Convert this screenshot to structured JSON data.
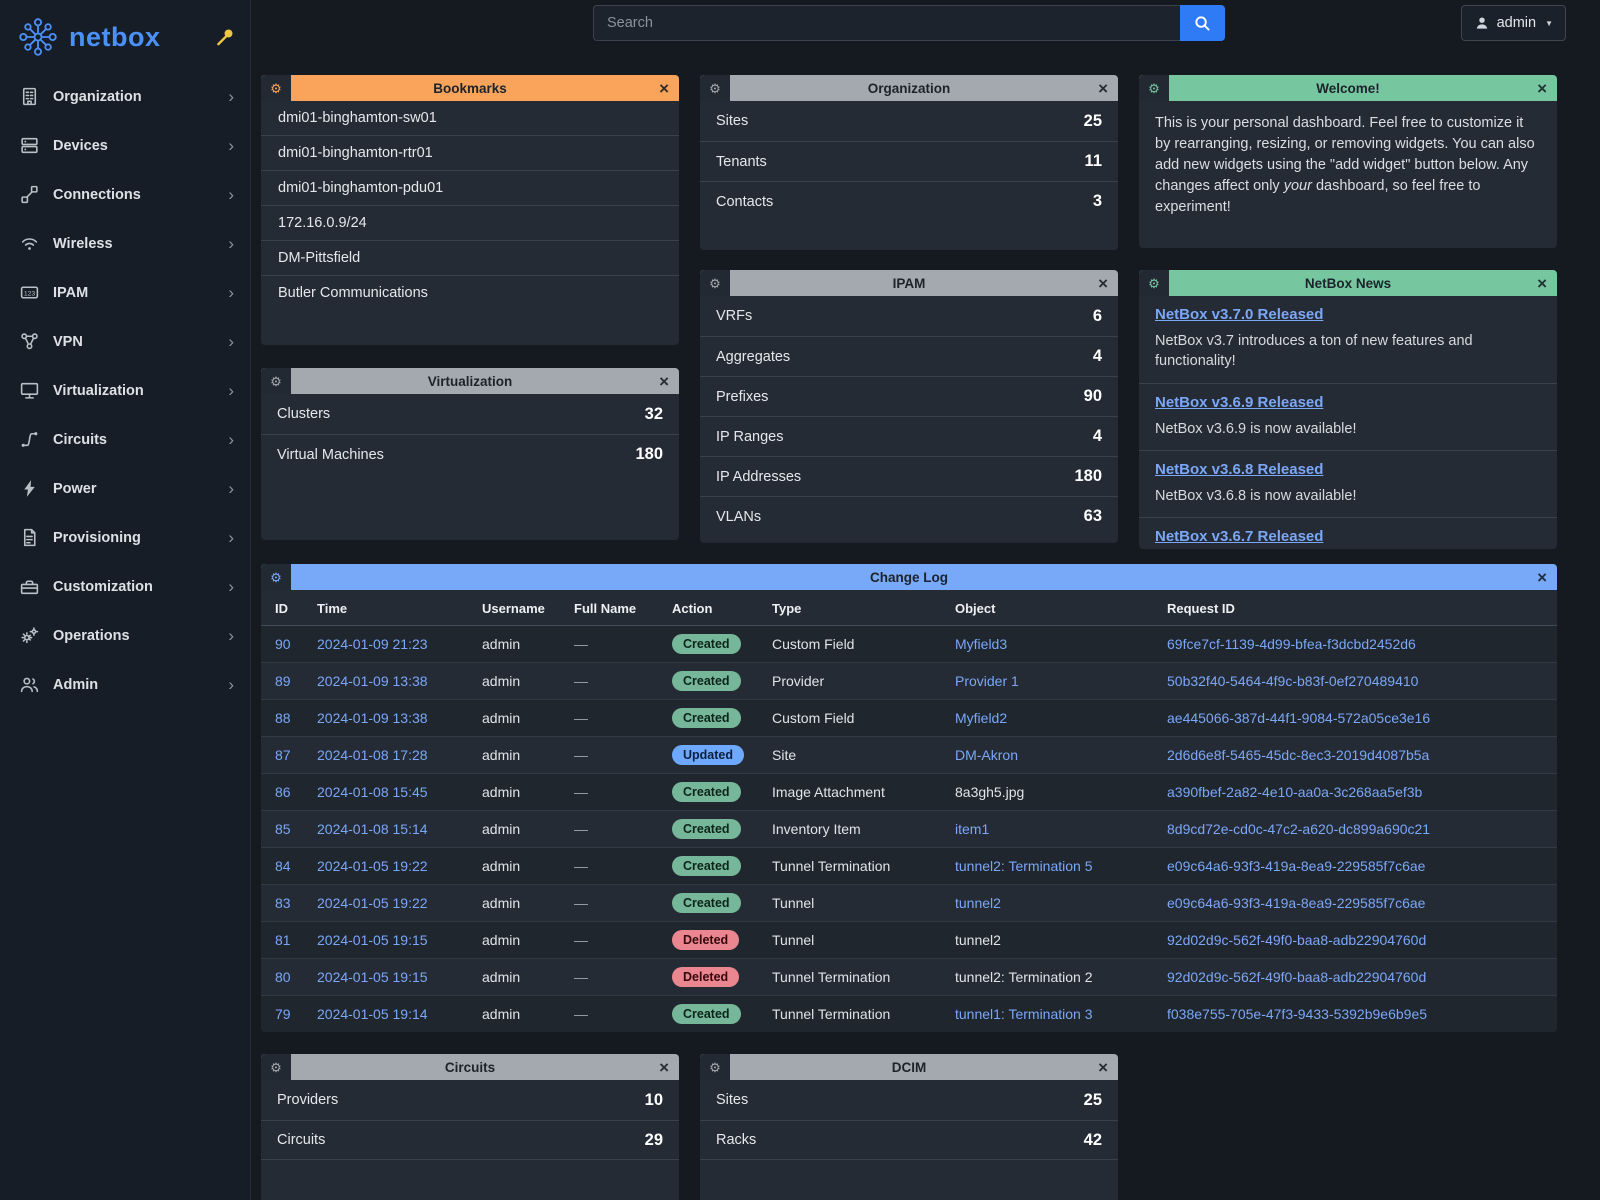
{
  "colors": {
    "accent": "#4a90f8",
    "link": "#7aa7f8",
    "header-orange": "#f9a45a",
    "header-gray": "#a4a9af",
    "header-green": "#76c7a0",
    "header-blue": "#78a9f8",
    "badge-created": "#75b798",
    "badge-updated": "#6ea8fe",
    "badge-deleted": "#ea868f",
    "pin-yellow": "#eec643"
  },
  "brand": {
    "name": "netbox"
  },
  "topbar": {
    "search_placeholder": "Search",
    "user_label": "admin"
  },
  "sidebar": {
    "items": [
      {
        "label": "Organization",
        "icon": "building-icon"
      },
      {
        "label": "Devices",
        "icon": "server-icon"
      },
      {
        "label": "Connections",
        "icon": "cable-icon"
      },
      {
        "label": "Wireless",
        "icon": "wifi-icon"
      },
      {
        "label": "IPAM",
        "icon": "counter-icon"
      },
      {
        "label": "VPN",
        "icon": "graph-icon"
      },
      {
        "label": "Virtualization",
        "icon": "monitor-icon"
      },
      {
        "label": "Circuits",
        "icon": "transit-icon"
      },
      {
        "label": "Power",
        "icon": "flash-icon"
      },
      {
        "label": "Provisioning",
        "icon": "document-icon"
      },
      {
        "label": "Customization",
        "icon": "toolbox-icon"
      },
      {
        "label": "Operations",
        "icon": "gears-icon"
      },
      {
        "label": "Admin",
        "icon": "users-icon"
      }
    ]
  },
  "widgets": {
    "bookmarks": {
      "title": "Bookmarks",
      "items": [
        "dmi01-binghamton-sw01",
        "dmi01-binghamton-rtr01",
        "dmi01-binghamton-pdu01",
        "172.16.0.9/24",
        "DM-Pittsfield",
        "Butler Communications"
      ]
    },
    "organization": {
      "title": "Organization",
      "stats": [
        {
          "label": "Sites",
          "value": "25"
        },
        {
          "label": "Tenants",
          "value": "11"
        },
        {
          "label": "Contacts",
          "value": "3"
        }
      ]
    },
    "welcome": {
      "title": "Welcome!",
      "text": [
        "This is your personal dashboard. Feel free to customize it by rearranging, resizing, or removing widgets. You can also add new widgets using the \"add widget\" button below. Any changes affect only ",
        "your",
        " dashboard, so feel free to experiment!"
      ]
    },
    "virtualization": {
      "title": "Virtualization",
      "stats": [
        {
          "label": "Clusters",
          "value": "32"
        },
        {
          "label": "Virtual Machines",
          "value": "180"
        }
      ]
    },
    "ipam": {
      "title": "IPAM",
      "stats": [
        {
          "label": "VRFs",
          "value": "6"
        },
        {
          "label": "Aggregates",
          "value": "4"
        },
        {
          "label": "Prefixes",
          "value": "90"
        },
        {
          "label": "IP Ranges",
          "value": "4"
        },
        {
          "label": "IP Addresses",
          "value": "180"
        },
        {
          "label": "VLANs",
          "value": "63"
        }
      ]
    },
    "news": {
      "title": "NetBox News",
      "items": [
        {
          "title": "NetBox v3.7.0 Released",
          "text": "NetBox v3.7 introduces a ton of new features and functionality!"
        },
        {
          "title": "NetBox v3.6.9 Released",
          "text": "NetBox v3.6.9 is now available!"
        },
        {
          "title": "NetBox v3.6.8 Released",
          "text": "NetBox v3.6.8 is now available!"
        },
        {
          "title": "NetBox v3.6.7 Released",
          "text": ""
        }
      ]
    },
    "circuits": {
      "title": "Circuits",
      "stats": [
        {
          "label": "Providers",
          "value": "10"
        },
        {
          "label": "Circuits",
          "value": "29"
        }
      ]
    },
    "dcim": {
      "title": "DCIM",
      "stats": [
        {
          "label": "Sites",
          "value": "25"
        },
        {
          "label": "Racks",
          "value": "42"
        }
      ]
    },
    "changelog": {
      "title": "Change Log",
      "columns": [
        "ID",
        "Time",
        "Username",
        "Full Name",
        "Action",
        "Type",
        "Object",
        "Request ID"
      ],
      "rows": [
        {
          "id": "90",
          "time": "2024-01-09 21:23",
          "username": "admin",
          "full_name": "—",
          "action": "Created",
          "type": "Custom Field",
          "object": "Myfield3",
          "object_link": true,
          "request_id": "69fce7cf-1139-4d99-bfea-f3dcbd2452d6"
        },
        {
          "id": "89",
          "time": "2024-01-09 13:38",
          "username": "admin",
          "full_name": "—",
          "action": "Created",
          "type": "Provider",
          "object": "Provider 1",
          "object_link": true,
          "request_id": "50b32f40-5464-4f9c-b83f-0ef270489410"
        },
        {
          "id": "88",
          "time": "2024-01-09 13:38",
          "username": "admin",
          "full_name": "—",
          "action": "Created",
          "type": "Custom Field",
          "object": "Myfield2",
          "object_link": true,
          "request_id": "ae445066-387d-44f1-9084-572a05ce3e16"
        },
        {
          "id": "87",
          "time": "2024-01-08 17:28",
          "username": "admin",
          "full_name": "—",
          "action": "Updated",
          "type": "Site",
          "object": "DM-Akron",
          "object_link": true,
          "request_id": "2d6d6e8f-5465-45dc-8ec3-2019d4087b5a"
        },
        {
          "id": "86",
          "time": "2024-01-08 15:45",
          "username": "admin",
          "full_name": "—",
          "action": "Created",
          "type": "Image Attachment",
          "object": "8a3gh5.jpg",
          "object_link": false,
          "request_id": "a390fbef-2a82-4e10-aa0a-3c268aa5ef3b"
        },
        {
          "id": "85",
          "time": "2024-01-08 15:14",
          "username": "admin",
          "full_name": "—",
          "action": "Created",
          "type": "Inventory Item",
          "object": "item1",
          "object_link": true,
          "request_id": "8d9cd72e-cd0c-47c2-a620-dc899a690c21"
        },
        {
          "id": "84",
          "time": "2024-01-05 19:22",
          "username": "admin",
          "full_name": "—",
          "action": "Created",
          "type": "Tunnel Termination",
          "object": "tunnel2: Termination 5",
          "object_link": true,
          "request_id": "e09c64a6-93f3-419a-8ea9-229585f7c6ae"
        },
        {
          "id": "83",
          "time": "2024-01-05 19:22",
          "username": "admin",
          "full_name": "—",
          "action": "Created",
          "type": "Tunnel",
          "object": "tunnel2",
          "object_link": true,
          "request_id": "e09c64a6-93f3-419a-8ea9-229585f7c6ae"
        },
        {
          "id": "81",
          "time": "2024-01-05 19:15",
          "username": "admin",
          "full_name": "—",
          "action": "Deleted",
          "type": "Tunnel",
          "object": "tunnel2",
          "object_link": false,
          "request_id": "92d02d9c-562f-49f0-baa8-adb22904760d"
        },
        {
          "id": "80",
          "time": "2024-01-05 19:15",
          "username": "admin",
          "full_name": "—",
          "action": "Deleted",
          "type": "Tunnel Termination",
          "object": "tunnel2: Termination 2",
          "object_link": false,
          "request_id": "92d02d9c-562f-49f0-baa8-adb22904760d"
        },
        {
          "id": "79",
          "time": "2024-01-05 19:14",
          "username": "admin",
          "full_name": "—",
          "action": "Created",
          "type": "Tunnel Termination",
          "object": "tunnel1: Termination 3",
          "object_link": true,
          "request_id": "f038e755-705e-47f3-9433-5392b9e6b9e5"
        }
      ]
    }
  }
}
